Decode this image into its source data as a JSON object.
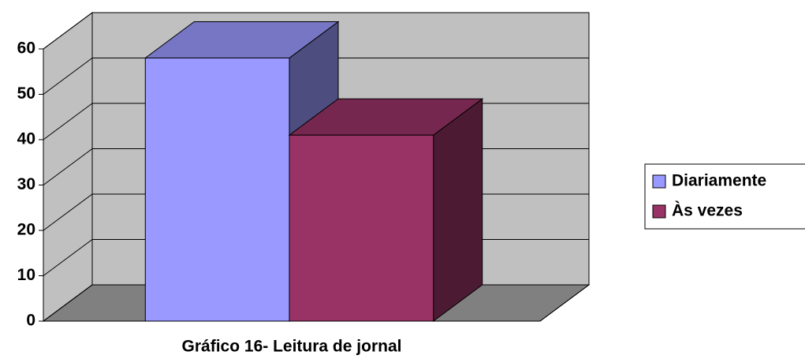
{
  "chart_data": {
    "type": "bar3d",
    "title": "Gráfico 16- Leitura de jornal",
    "categories": [
      null
    ],
    "series": [
      {
        "name": "Diariamente",
        "color": "#9999ff",
        "values": [
          58
        ]
      },
      {
        "name": "Às vezes",
        "color": "#993366",
        "values": [
          41
        ]
      }
    ],
    "ylim": [
      0,
      60
    ],
    "yticks": [
      0,
      10,
      20,
      30,
      40,
      50,
      60
    ],
    "grid": true,
    "legend": "right"
  }
}
